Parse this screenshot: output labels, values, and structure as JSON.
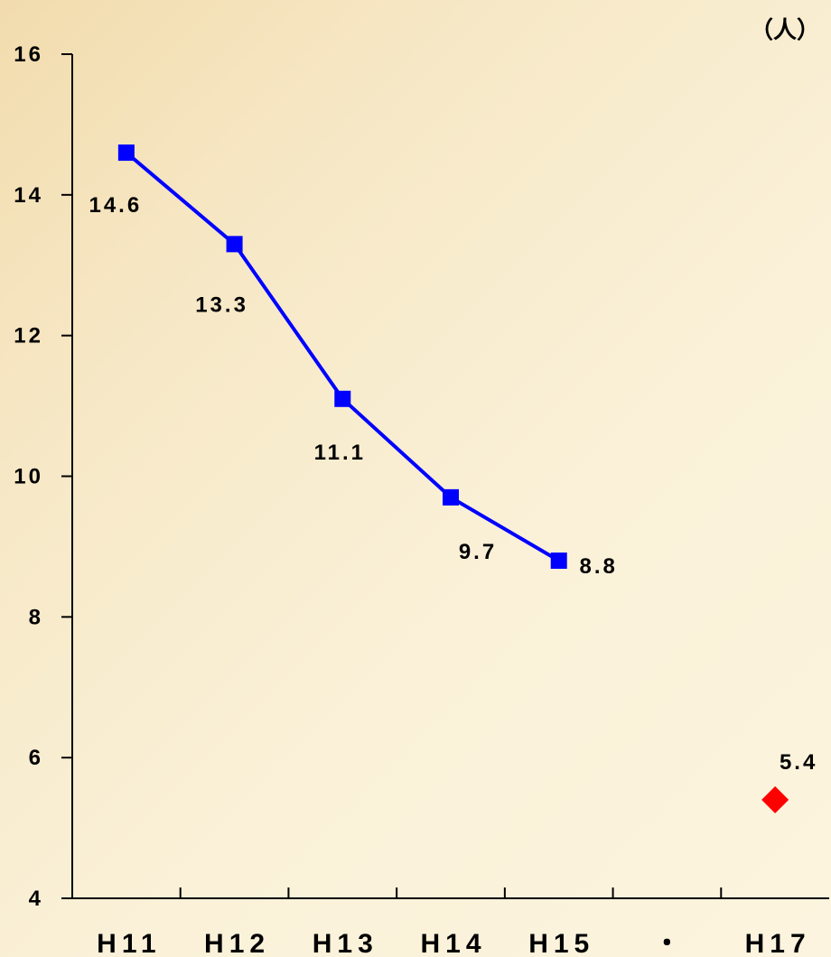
{
  "chart_data": {
    "type": "line",
    "unit_label": "（人）",
    "categories": [
      "H11",
      "H12",
      "H13",
      "H14",
      "H15",
      "・",
      "H17"
    ],
    "ylim": [
      4,
      16
    ],
    "yticks": [
      4,
      6,
      8,
      10,
      12,
      14,
      16
    ],
    "grid": false,
    "legend": "none",
    "series": [
      {
        "marker": "square",
        "color": "#0000ff",
        "connected": true,
        "points": [
          {
            "x": "H11",
            "y": 14.6,
            "label": "14.6"
          },
          {
            "x": "H12",
            "y": 13.3,
            "label": "13.3"
          },
          {
            "x": "H13",
            "y": 11.1,
            "label": "11.1"
          },
          {
            "x": "H14",
            "y": 9.7,
            "label": "9.7"
          },
          {
            "x": "H15",
            "y": 8.8,
            "label": "8.8"
          }
        ]
      },
      {
        "marker": "diamond",
        "color": "#ff0000",
        "connected": false,
        "points": [
          {
            "x": "H17",
            "y": 5.4,
            "label": "5.4"
          }
        ]
      }
    ]
  }
}
